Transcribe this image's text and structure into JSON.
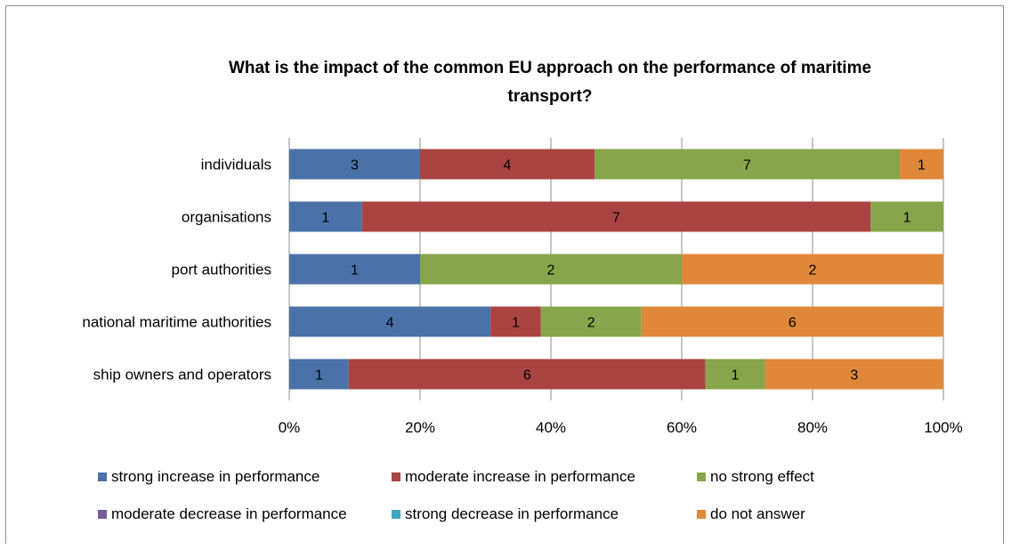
{
  "chart_data": {
    "type": "bar",
    "orientation": "horizontal",
    "stacked": "percent",
    "title": "What is the impact of the common EU approach on the performance of maritime transport?",
    "title_lines": [
      "What is the impact of the common EU approach on the performance of maritime",
      "transport?"
    ],
    "categories": [
      "individuals",
      "organisations",
      "port authorities",
      "national maritime authorities",
      "ship owners and operators"
    ],
    "series": [
      {
        "name": "strong increase in performance",
        "color": "#4a72a8",
        "values": [
          3,
          1,
          1,
          4,
          1
        ]
      },
      {
        "name": "moderate increase in performance",
        "color": "#a94442",
        "values": [
          4,
          7,
          0,
          1,
          6
        ]
      },
      {
        "name": "no strong effect",
        "color": "#87a54a",
        "values": [
          7,
          1,
          2,
          2,
          1
        ]
      },
      {
        "name": "moderate decrease in performance",
        "color": "#7a5c99",
        "values": [
          0,
          0,
          0,
          0,
          0
        ]
      },
      {
        "name": "strong decrease in performance",
        "color": "#3fa8bf",
        "values": [
          0,
          0,
          0,
          0,
          0
        ]
      },
      {
        "name": "do not answer",
        "color": "#e0883a",
        "values": [
          1,
          0,
          2,
          6,
          3
        ]
      }
    ],
    "x_ticks": [
      "0%",
      "20%",
      "40%",
      "60%",
      "80%",
      "100%"
    ],
    "xlim": [
      0,
      100
    ],
    "grid": true,
    "legend_position": "bottom"
  }
}
